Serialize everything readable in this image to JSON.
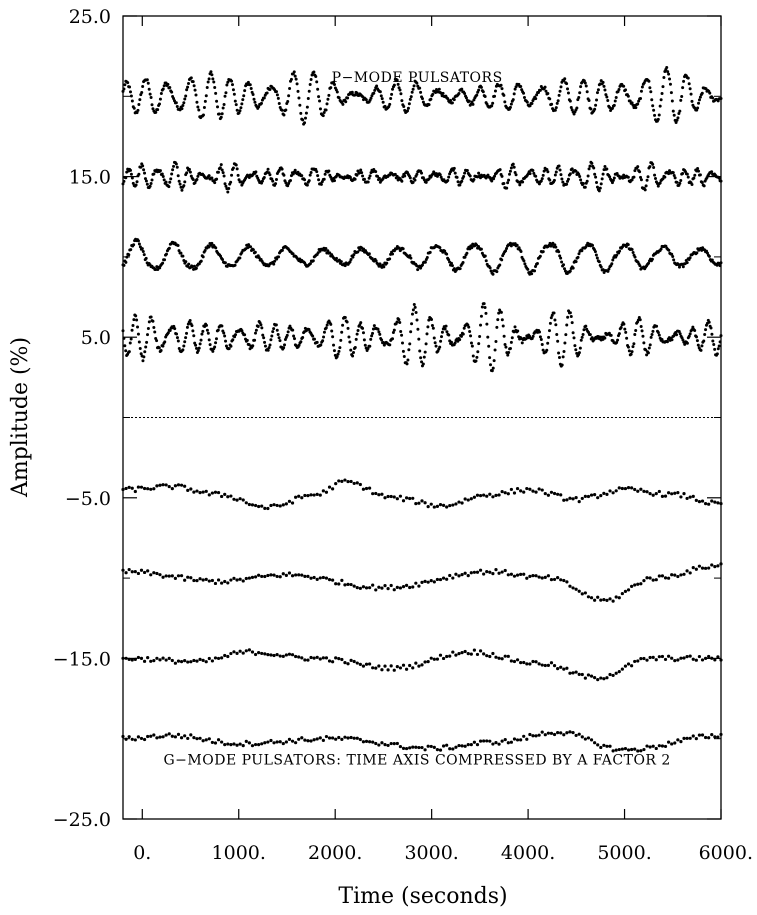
{
  "chart_data": {
    "type": "scatter",
    "xlabel": "Time (seconds)",
    "ylabel": "Amplitude (%)",
    "xlim": [
      -200,
      6000
    ],
    "ylim": [
      -25.0,
      25.0
    ],
    "x_ticks": [
      0,
      1000,
      2000,
      3000,
      4000,
      5000,
      6000
    ],
    "x_tick_labels": [
      "0.",
      "1000.",
      "2000.",
      "3000.",
      "4000.",
      "5000.",
      "6000."
    ],
    "y_ticks": [
      25.0,
      15.0,
      5.0,
      -5.0,
      -15.0,
      -25.0
    ],
    "y_tick_labels": [
      "25.0",
      "15.0",
      "5.0",
      "−5.0",
      "−15.0",
      "−25.0"
    ],
    "y_minor_ticks": [
      20,
      10,
      0,
      -10,
      -20
    ],
    "zero_line": 0,
    "grid": false,
    "legend": "none",
    "marker_color": "#000000",
    "annotations": [
      {
        "text": "P−MODE PULSATORS",
        "x": 2850,
        "y": 21.2
      },
      {
        "text": "G−MODE PULSATORS: TIME AXIS COMPRESSED BY A FACTOR 2",
        "x": 2850,
        "y": -21.3
      }
    ],
    "series": [
      {
        "group": "p-mode",
        "offset": 20,
        "x_start": -200,
        "x_end": 6000,
        "n_points": 640,
        "components": [
          [
            1.0,
            215
          ],
          [
            0.5,
            175
          ],
          [
            0.3,
            260
          ]
        ]
      },
      {
        "group": "p-mode",
        "offset": 15,
        "x_start": -200,
        "x_end": 6000,
        "n_points": 640,
        "components": [
          [
            0.45,
            160
          ],
          [
            0.3,
            120
          ],
          [
            0.2,
            205
          ]
        ]
      },
      {
        "group": "p-mode",
        "offset": 10,
        "x_start": -200,
        "x_end": 6000,
        "n_points": 620,
        "components": [
          [
            0.9,
            390
          ],
          [
            0.12,
            190
          ]
        ]
      },
      {
        "group": "p-mode",
        "offset": 5,
        "x_start": -200,
        "x_end": 6000,
        "n_points": 660,
        "components": [
          [
            1.1,
            180
          ],
          [
            0.7,
            145
          ],
          [
            0.4,
            230
          ]
        ]
      },
      {
        "group": "g-mode",
        "x_start": -200,
        "x_end": 6000,
        "n_points": 195,
        "knots": [
          [
            -200,
            -4.5
          ],
          [
            300,
            -4.3
          ],
          [
            800,
            -4.8
          ],
          [
            1300,
            -5.6
          ],
          [
            1800,
            -4.8
          ],
          [
            2100,
            -4.0
          ],
          [
            2600,
            -5.0
          ],
          [
            3100,
            -5.5
          ],
          [
            3600,
            -4.8
          ],
          [
            4000,
            -4.5
          ],
          [
            4500,
            -5.1
          ],
          [
            5000,
            -4.5
          ],
          [
            5500,
            -4.8
          ],
          [
            6000,
            -5.4
          ]
        ]
      },
      {
        "group": "g-mode",
        "x_start": -200,
        "x_end": 6000,
        "n_points": 195,
        "knots": [
          [
            -200,
            -9.6
          ],
          [
            800,
            -10.2
          ],
          [
            1500,
            -9.8
          ],
          [
            2500,
            -10.6
          ],
          [
            3600,
            -9.6
          ],
          [
            4200,
            -10.0
          ],
          [
            4800,
            -11.4
          ],
          [
            5300,
            -10.0
          ],
          [
            6000,
            -9.2
          ]
        ]
      },
      {
        "group": "g-mode",
        "x_start": -200,
        "x_end": 6000,
        "n_points": 195,
        "knots": [
          [
            -200,
            -15.0
          ],
          [
            600,
            -15.2
          ],
          [
            1100,
            -14.6
          ],
          [
            1800,
            -15.0
          ],
          [
            2600,
            -15.6
          ],
          [
            3400,
            -14.6
          ],
          [
            4100,
            -15.3
          ],
          [
            4700,
            -16.2
          ],
          [
            5300,
            -15.0
          ],
          [
            6000,
            -15.0
          ]
        ]
      },
      {
        "group": "g-mode",
        "x_start": -200,
        "x_end": 6000,
        "n_points": 195,
        "knots": [
          [
            -200,
            -20.0
          ],
          [
            300,
            -19.8
          ],
          [
            1000,
            -20.3
          ],
          [
            2000,
            -20.0
          ],
          [
            3000,
            -20.6
          ],
          [
            3700,
            -20.2
          ],
          [
            4300,
            -19.6
          ],
          [
            5000,
            -20.7
          ],
          [
            6000,
            -19.8
          ]
        ]
      }
    ]
  }
}
